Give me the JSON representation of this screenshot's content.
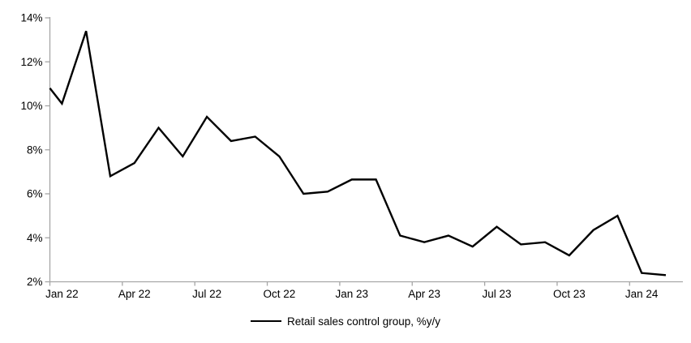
{
  "chart_data": {
    "type": "line",
    "title": "",
    "legend": "Retail sales control group, %y/y",
    "legend_position": "bottom-center",
    "categories": [
      "Jan 22",
      "Feb 22",
      "Mar 22",
      "Apr 22",
      "May 22",
      "Jun 22",
      "Jul 22",
      "Aug 22",
      "Sep 22",
      "Oct 22",
      "Nov 22",
      "Dec 22",
      "Jan 23",
      "Feb 23",
      "Mar 23",
      "Apr 23",
      "May 23",
      "Jun 23",
      "Jul 23",
      "Aug 23",
      "Sep 23",
      "Oct 23",
      "Nov 23",
      "Dec 23",
      "Jan 24",
      "Feb 24"
    ],
    "values": [
      10.1,
      13.4,
      6.8,
      7.4,
      9.0,
      7.7,
      9.5,
      8.4,
      8.6,
      7.7,
      6.0,
      6.1,
      6.65,
      6.65,
      4.1,
      3.8,
      4.1,
      3.6,
      4.5,
      3.7,
      3.8,
      3.2,
      4.35,
      5.0,
      2.4,
      2.3
    ],
    "partial_prior_segment_value_at_left_edge": 10.8,
    "ylim": [
      2,
      14
    ],
    "ytick_step": 2,
    "ytick_labels": [
      "2%",
      "4%",
      "6%",
      "8%",
      "10%",
      "12%",
      "14%"
    ],
    "xtick_labels": [
      "Jan 22",
      "Apr 22",
      "Jul 22",
      "Oct 22",
      "Jan 23",
      "Apr 23",
      "Jul 23",
      "Oct 23",
      "Jan 24"
    ],
    "xtick_interval_months": 3,
    "grid": false,
    "line_color": "#000000",
    "axis_color": "#a6a6a6",
    "text_color": "#000000",
    "background_color": "#ffffff"
  }
}
